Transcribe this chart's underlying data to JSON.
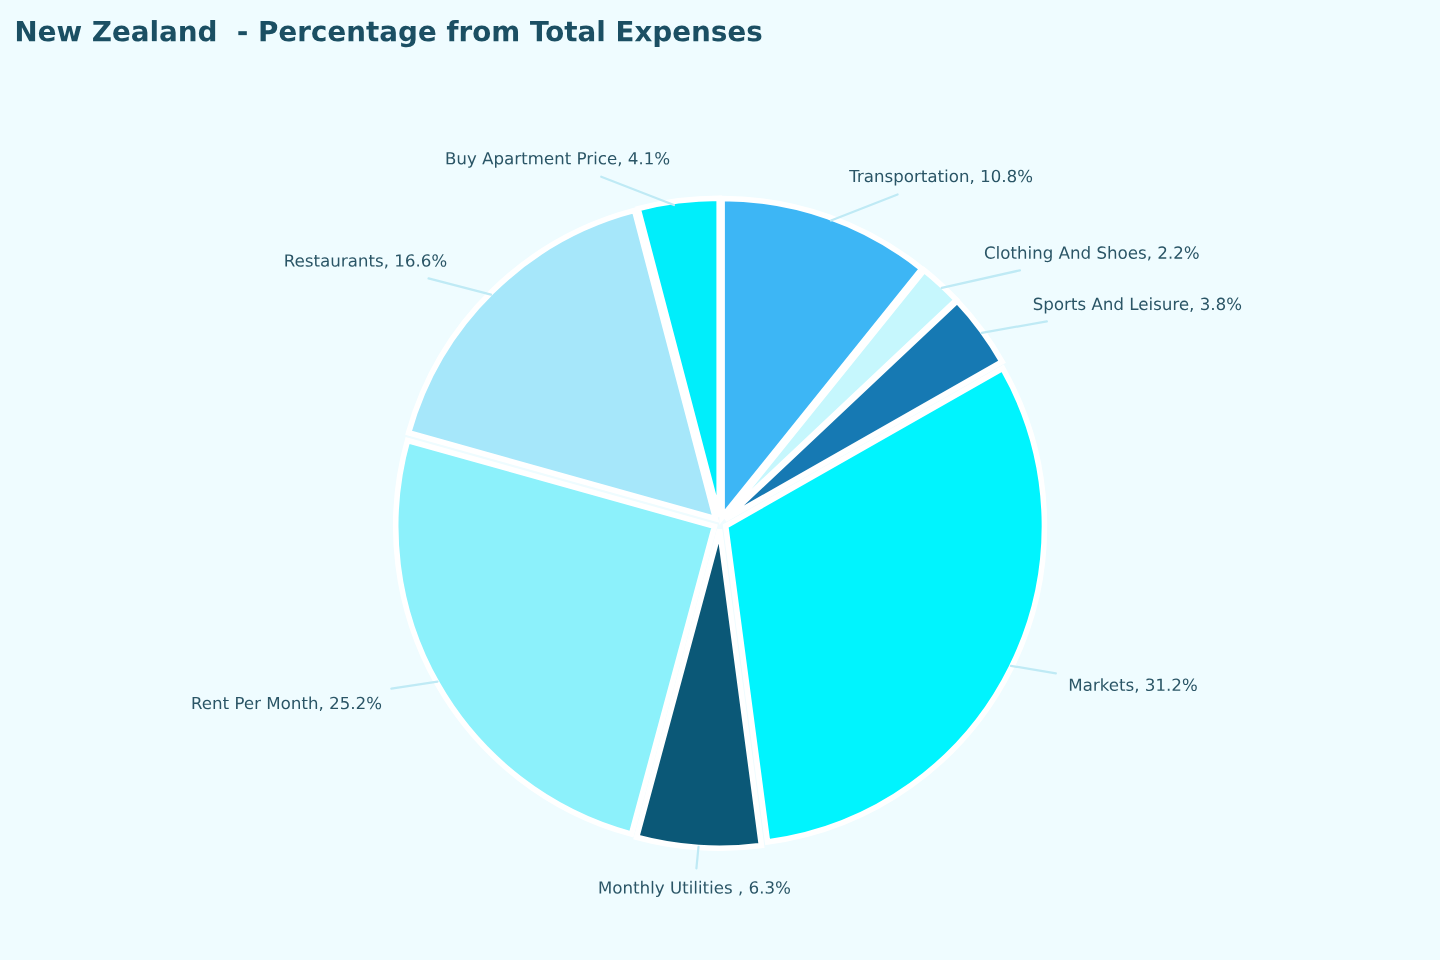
{
  "chart_data": {
    "type": "pie",
    "title": "New Zealand  - Percentage from Total Expenses",
    "categories": [
      "Transportation",
      "Clothing And Shoes",
      "Sports And Leisure",
      "Markets",
      "Monthly Utilities ",
      "Rent Per Month",
      "Restaurants",
      "Buy Apartment Price"
    ],
    "values": [
      10.8,
      2.2,
      3.8,
      31.2,
      6.3,
      25.2,
      16.6,
      4.1
    ],
    "value_labels": [
      "10.8%",
      "2.2%",
      "3.8%",
      "31.2%",
      "6.3%",
      "25.2%",
      "16.6%",
      "4.1%"
    ],
    "colors": [
      "#3db6f5",
      "#c6f7fd",
      "#1679b3",
      "#00f4fe",
      "#0b5877",
      "#8cf1fb",
      "#a6e7fa",
      "#00eefb"
    ],
    "legend": false
  }
}
